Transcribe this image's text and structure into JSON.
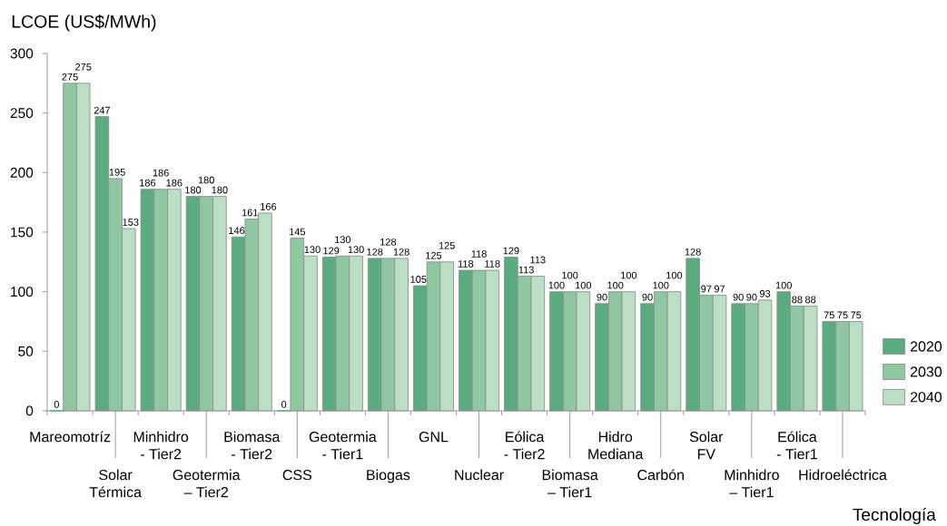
{
  "chart_data": {
    "type": "bar",
    "ylabel": "LCOE (US$/MWh)",
    "xlabel": "Tecnología",
    "categories": [
      "Mareomotríz",
      "Solar Térmica",
      "Minhidro - Tier2",
      "Geotermia – Tier2",
      "Biomasa - Tier2",
      "CSS",
      "Geotermia - Tier1",
      "Biogas",
      "GNL",
      "Nuclear",
      "Eólica - Tier2",
      "Biomasa – Tier1",
      "Hidro Mediana",
      "Carbón",
      "Solar FV",
      "Minhidro – Tier1",
      "Eólica - Tier1",
      "Hidroeléctrica"
    ],
    "series": [
      {
        "name": "2020",
        "color": "#5aac7f",
        "values": [
          0,
          247,
          186,
          180,
          146,
          0,
          129,
          128,
          105,
          118,
          129,
          100,
          90,
          90,
          128,
          90,
          100,
          75
        ]
      },
      {
        "name": "2030",
        "color": "#8fc8a0",
        "values": [
          275,
          195,
          186,
          180,
          161,
          145,
          130,
          128,
          125,
          118,
          113,
          100,
          100,
          100,
          97,
          90,
          88,
          75
        ]
      },
      {
        "name": "2040",
        "color": "#bbdfc3",
        "values": [
          275,
          153,
          186,
          180,
          166,
          130,
          130,
          128,
          125,
          118,
          113,
          100,
          100,
          100,
          97,
          93,
          88,
          75
        ]
      }
    ],
    "ylim": [
      0,
      300
    ],
    "yticks": [
      0,
      50,
      100,
      150,
      200,
      250,
      300
    ],
    "data_labels": true,
    "legend": "right"
  }
}
